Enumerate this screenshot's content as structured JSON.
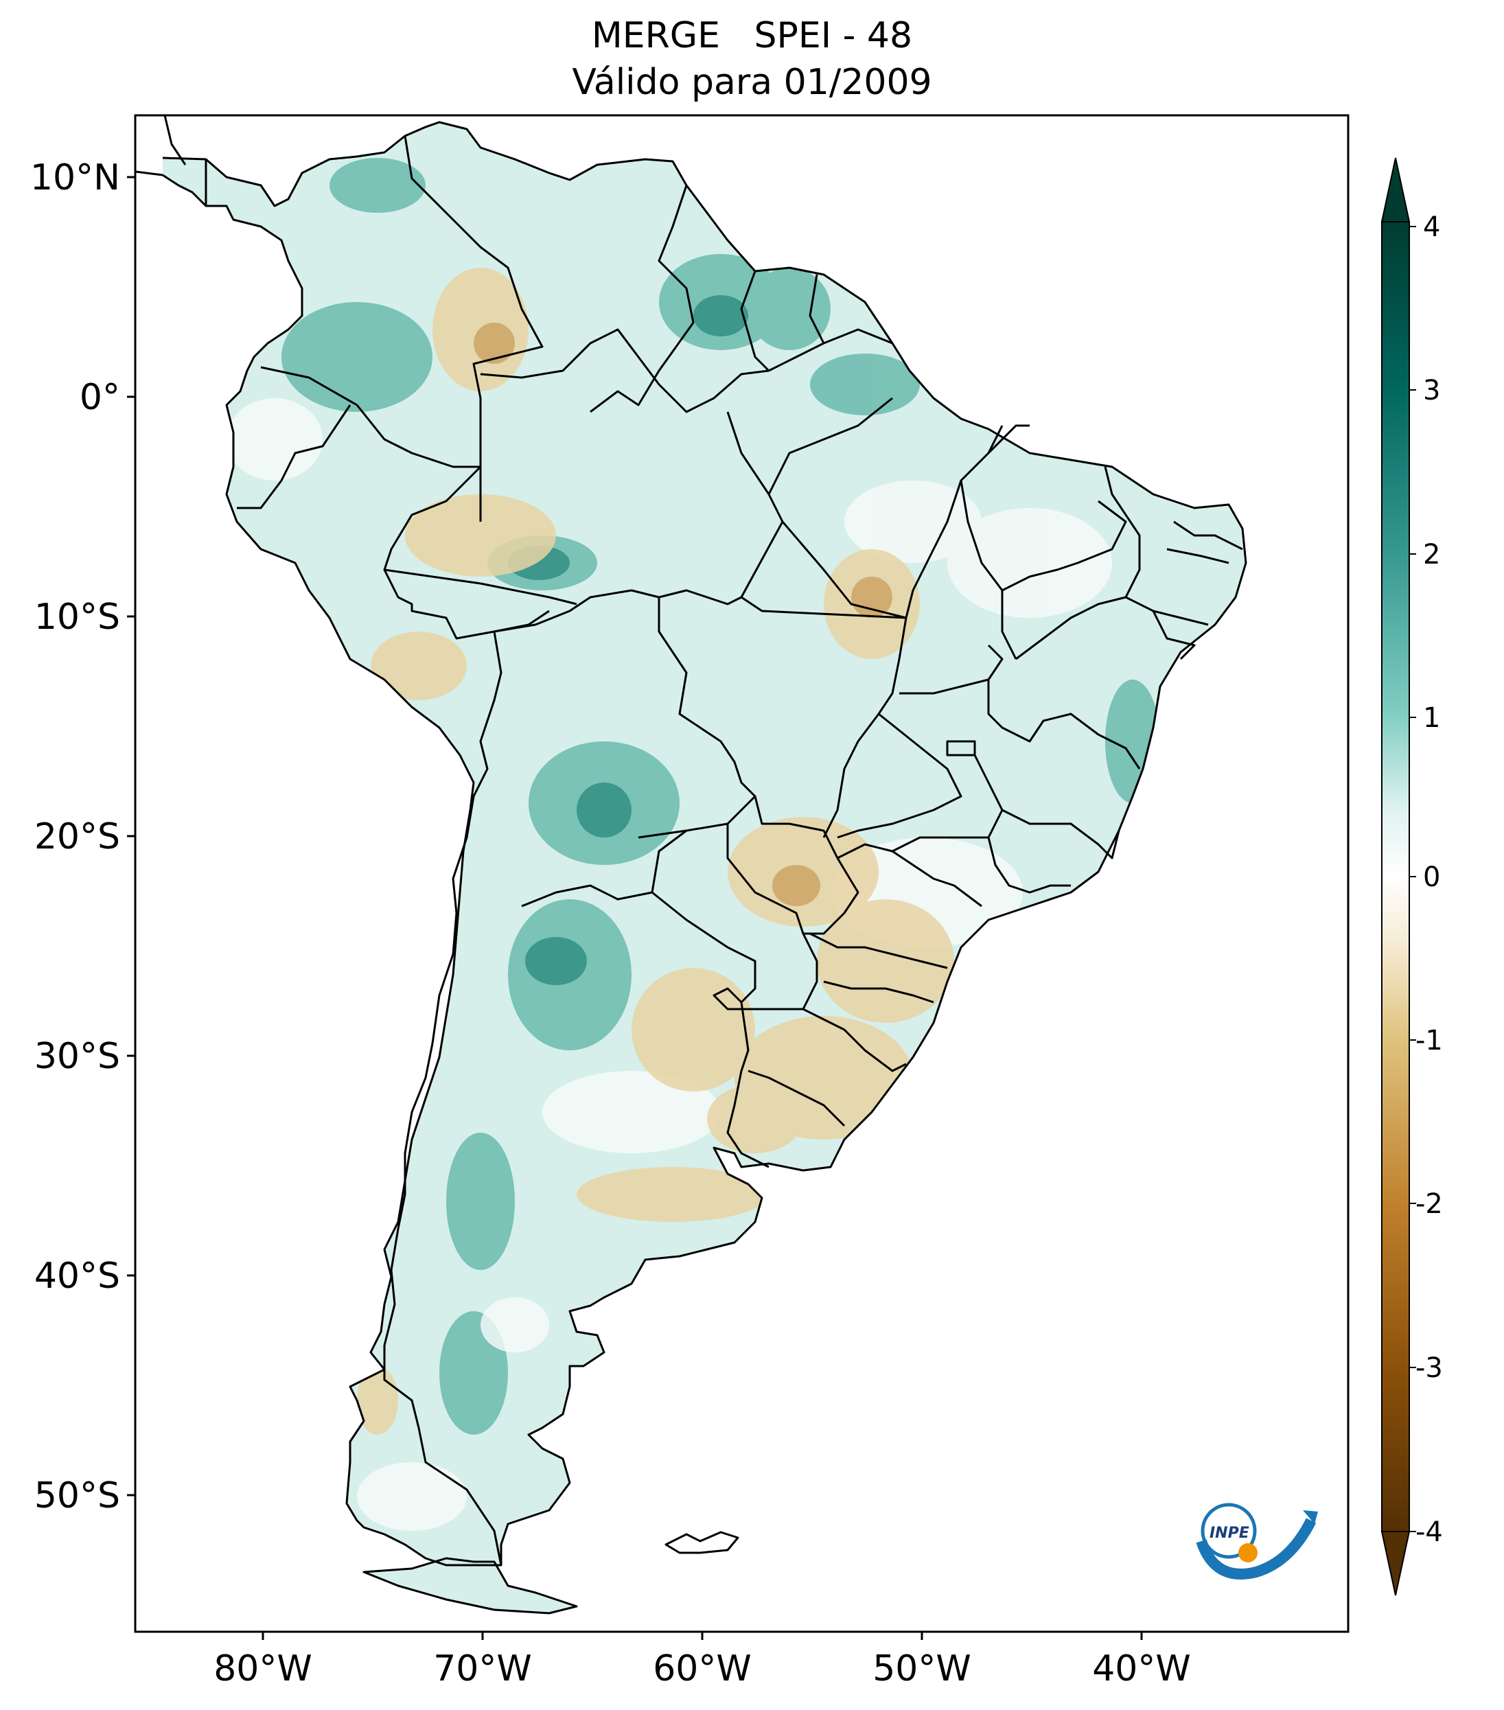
{
  "title": {
    "line1": "MERGE   SPEI - 48",
    "line2": "Válido para 01/2009"
  },
  "map": {
    "region": "South America",
    "lat_ticks": [
      "10°N",
      "0°",
      "10°S",
      "20°S",
      "30°S",
      "40°S",
      "50°S"
    ],
    "lon_ticks": [
      "80°W",
      "70°W",
      "60°W",
      "50°W",
      "40°W"
    ],
    "logo": {
      "text": "INPE",
      "icon": "inpe-logo-icon"
    }
  },
  "colorbar": {
    "ticks": [
      "4",
      "3",
      "2",
      "1",
      "0",
      "-1",
      "-2",
      "-3",
      "-4"
    ],
    "range": [
      -4,
      4
    ],
    "extend": "both",
    "colors": {
      "max": "#003c30",
      "high": "#35978f",
      "mid_high": "#c7eae5",
      "zero": "#ffffff",
      "mid_low": "#f6e8c3",
      "low": "#bf812d",
      "min": "#543005"
    }
  }
}
